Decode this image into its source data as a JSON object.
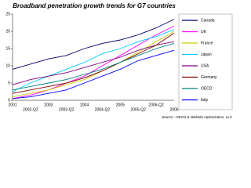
{
  "chart_data": {
    "type": "line",
    "title": "Broadband penetration growth trends for G7 countries",
    "source": "Source : OECD & Website Optimization, LLC",
    "categories": [
      "2001",
      "2002-Q2",
      "2003",
      "2003-Q2",
      "2004",
      "2004-Q2",
      "2005",
      "2005-Q2",
      "2006-Q2",
      "2006"
    ],
    "series": [
      {
        "name": "Canada",
        "color": "#000066",
        "values": [
          9,
          10.5,
          12,
          13,
          15,
          16.5,
          17.5,
          19,
          21,
          23.5
        ]
      },
      {
        "name": "UK",
        "color": "#ff00ff",
        "values": [
          0.5,
          1.5,
          3,
          5,
          7,
          10,
          13,
          16,
          19,
          21.5
        ]
      },
      {
        "name": "France",
        "color": "#cccc00",
        "values": [
          1,
          2,
          3,
          4.5,
          6,
          8.5,
          11,
          14,
          17,
          20
        ]
      },
      {
        "name": "Japan",
        "color": "#00ccff",
        "values": [
          2.5,
          5,
          7,
          9,
          11,
          13.5,
          15,
          17,
          18.5,
          20.5
        ]
      },
      {
        "name": "USA",
        "color": "#800080",
        "values": [
          4.5,
          6,
          7,
          8,
          9.5,
          11,
          12.5,
          14.5,
          16,
          17
        ]
      },
      {
        "name": "Germany",
        "color": "#800000",
        "values": [
          2,
          3,
          4,
          5,
          6.5,
          8.5,
          11,
          13.5,
          16,
          19.5
        ]
      },
      {
        "name": "OECD",
        "color": "#008080",
        "values": [
          3,
          4,
          5,
          6,
          7.5,
          9,
          11,
          13,
          15,
          16.5
        ]
      },
      {
        "name": "Italy",
        "color": "#0000ff",
        "values": [
          0.5,
          1,
          2,
          3,
          5,
          7,
          9,
          11.5,
          13,
          14.5
        ]
      }
    ],
    "ylim": [
      0,
      25
    ],
    "yticks": [
      0,
      5,
      10,
      15,
      20,
      25
    ],
    "grid": false
  }
}
